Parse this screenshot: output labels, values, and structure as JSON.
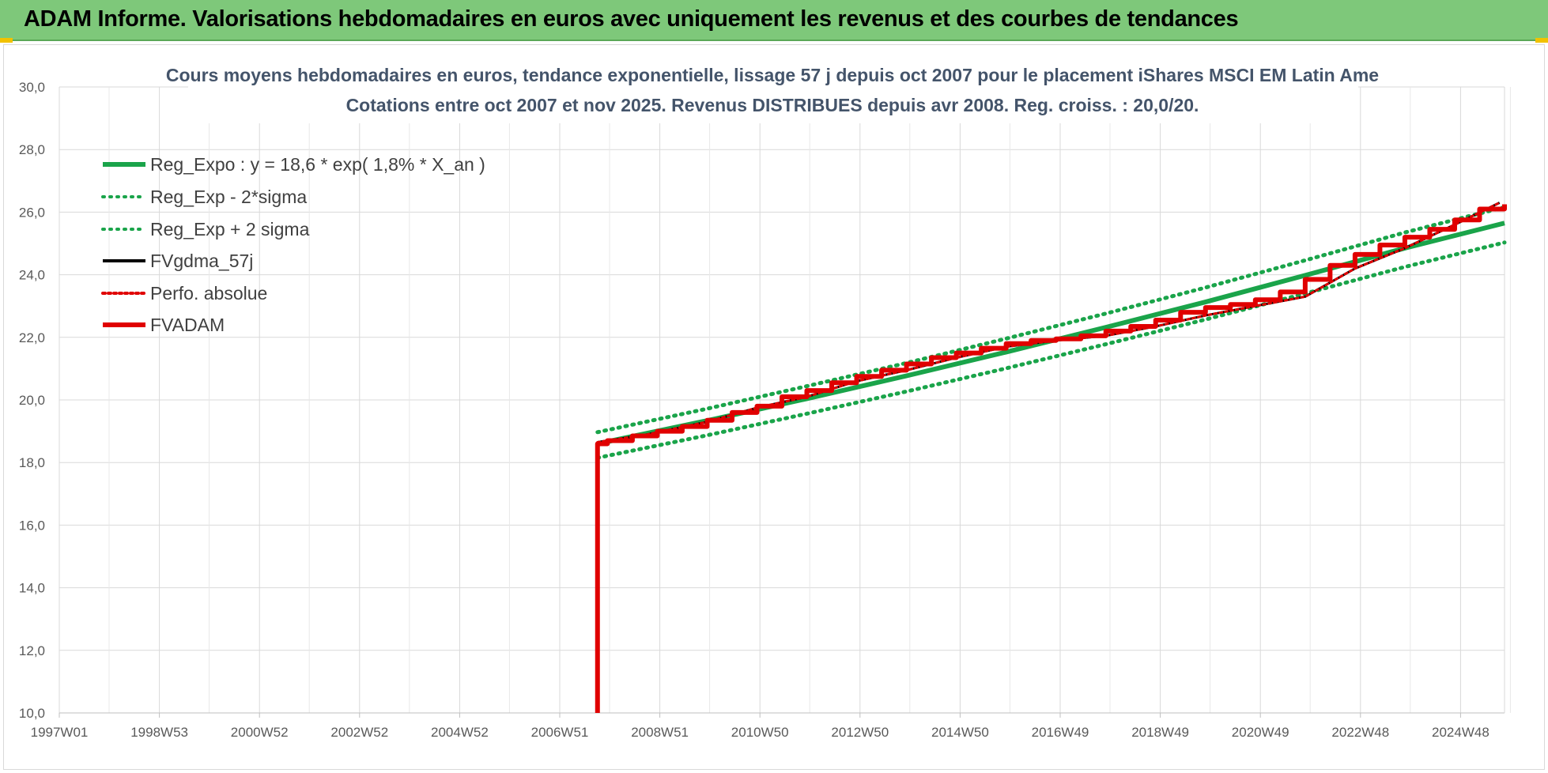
{
  "header": {
    "title": "ADAM Informe. Valorisations hebdomadaires en euros avec uniquement les revenus et des courbes de tendances"
  },
  "chart_data": {
    "type": "line",
    "title": "Cours moyens hebdomadaires en euros, tendance exponentielle, lissage 57 j depuis oct 2007 pour le placement iShares MSCI EM Latin Ame",
    "subtitle": "Cotations entre oct 2007 et nov 2025. Revenus DISTRIBUES depuis avr 2008. Reg. croiss. : 20,0/20.",
    "xlabel": "",
    "ylabel": "",
    "x_tick_labels": [
      "1997W01",
      "1998W53",
      "2000W52",
      "2002W52",
      "2004W52",
      "2006W51",
      "2008W51",
      "2010W50",
      "2012W50",
      "2014W50",
      "2016W49",
      "2018W49",
      "2020W49",
      "2022W48",
      "2024W48"
    ],
    "xlim": [
      1997.0,
      2026.0
    ],
    "ylim": [
      10.0,
      30.0
    ],
    "y_ticks": [
      "10,0",
      "12,0",
      "14,0",
      "16,0",
      "18,0",
      "20,0",
      "22,0",
      "24,0",
      "26,0",
      "28,0",
      "30,0"
    ],
    "grid": true,
    "legend_position": "top-left",
    "series": [
      {
        "name": "Reg_Expo : y = 18,6 * exp( 1,8% *  X_an )",
        "color": "#1aa44a",
        "style": "solid-thick",
        "x": [
          2007.8,
          2010,
          2012,
          2014,
          2016,
          2018,
          2020,
          2022,
          2024,
          2026.0
        ],
        "y": [
          18.6,
          19.34,
          20.04,
          20.77,
          21.53,
          22.32,
          23.13,
          23.98,
          24.85,
          25.65
        ]
      },
      {
        "name": "Reg_Exp - 2*sigma",
        "color": "#1aa44a",
        "style": "dotted",
        "x": [
          2007.8,
          2010,
          2012,
          2014,
          2016,
          2018,
          2020,
          2022,
          2024,
          2026.0
        ],
        "y": [
          18.15,
          18.87,
          19.56,
          20.27,
          21.01,
          21.78,
          22.57,
          23.4,
          24.25,
          25.03
        ]
      },
      {
        "name": "Reg_Exp + 2 sigma",
        "color": "#1aa44a",
        "style": "dotted",
        "x": [
          2007.8,
          2010,
          2012,
          2014,
          2016,
          2018,
          2020,
          2022,
          2024,
          2026.0
        ],
        "y": [
          18.97,
          19.72,
          20.44,
          21.18,
          21.96,
          22.76,
          23.59,
          24.46,
          25.35,
          26.16
        ]
      },
      {
        "name": "FVgdma_57j",
        "color": "#000000",
        "style": "solid",
        "x": [
          2007.8,
          2008.8,
          2010,
          2011,
          2012,
          2013,
          2014,
          2015,
          2016,
          2017,
          2018,
          2019,
          2020,
          2021,
          2022,
          2023,
          2024,
          2025,
          2025.9
        ],
        "y": [
          18.65,
          18.9,
          19.3,
          19.75,
          20.1,
          20.6,
          20.95,
          21.35,
          21.7,
          21.9,
          22.05,
          22.35,
          22.7,
          23.0,
          23.3,
          24.2,
          24.85,
          25.6,
          26.3
        ]
      },
      {
        "name": "Perfo. absolue",
        "color": "#e00000",
        "style": "dotted",
        "x": [
          2007.8,
          2008.8,
          2010,
          2011,
          2012,
          2013,
          2014,
          2015,
          2016,
          2017,
          2018,
          2019,
          2020,
          2021,
          2022,
          2023,
          2024,
          2025,
          2025.9
        ],
        "y": [
          18.65,
          18.9,
          19.3,
          19.75,
          20.1,
          20.6,
          20.95,
          21.35,
          21.7,
          21.9,
          22.05,
          22.35,
          22.7,
          23.0,
          23.3,
          24.2,
          24.85,
          25.6,
          26.3
        ]
      },
      {
        "name": "FVADAM",
        "color": "#e00000",
        "style": "solid-thick",
        "x": [
          2007.8,
          2007.8,
          2008.0,
          2008.5,
          2009.0,
          2009.5,
          2010.0,
          2010.5,
          2011.0,
          2011.5,
          2012.0,
          2012.5,
          2013.0,
          2013.5,
          2014.0,
          2014.5,
          2015.0,
          2015.5,
          2016.0,
          2016.5,
          2017.0,
          2017.5,
          2018.0,
          2018.5,
          2019.0,
          2019.5,
          2020.0,
          2020.5,
          2021.0,
          2021.5,
          2022.0,
          2022.5,
          2023.0,
          2023.5,
          2024.0,
          2024.5,
          2025.0,
          2025.5,
          2026.0
        ],
        "y": [
          10.0,
          18.6,
          18.7,
          18.85,
          19.0,
          19.15,
          19.35,
          19.6,
          19.8,
          20.1,
          20.3,
          20.55,
          20.75,
          20.95,
          21.15,
          21.35,
          21.5,
          21.65,
          21.8,
          21.9,
          21.95,
          22.05,
          22.2,
          22.35,
          22.55,
          22.8,
          22.95,
          23.05,
          23.2,
          23.45,
          23.85,
          24.3,
          24.65,
          24.95,
          25.2,
          25.45,
          25.75,
          26.1,
          26.25
        ]
      }
    ]
  }
}
